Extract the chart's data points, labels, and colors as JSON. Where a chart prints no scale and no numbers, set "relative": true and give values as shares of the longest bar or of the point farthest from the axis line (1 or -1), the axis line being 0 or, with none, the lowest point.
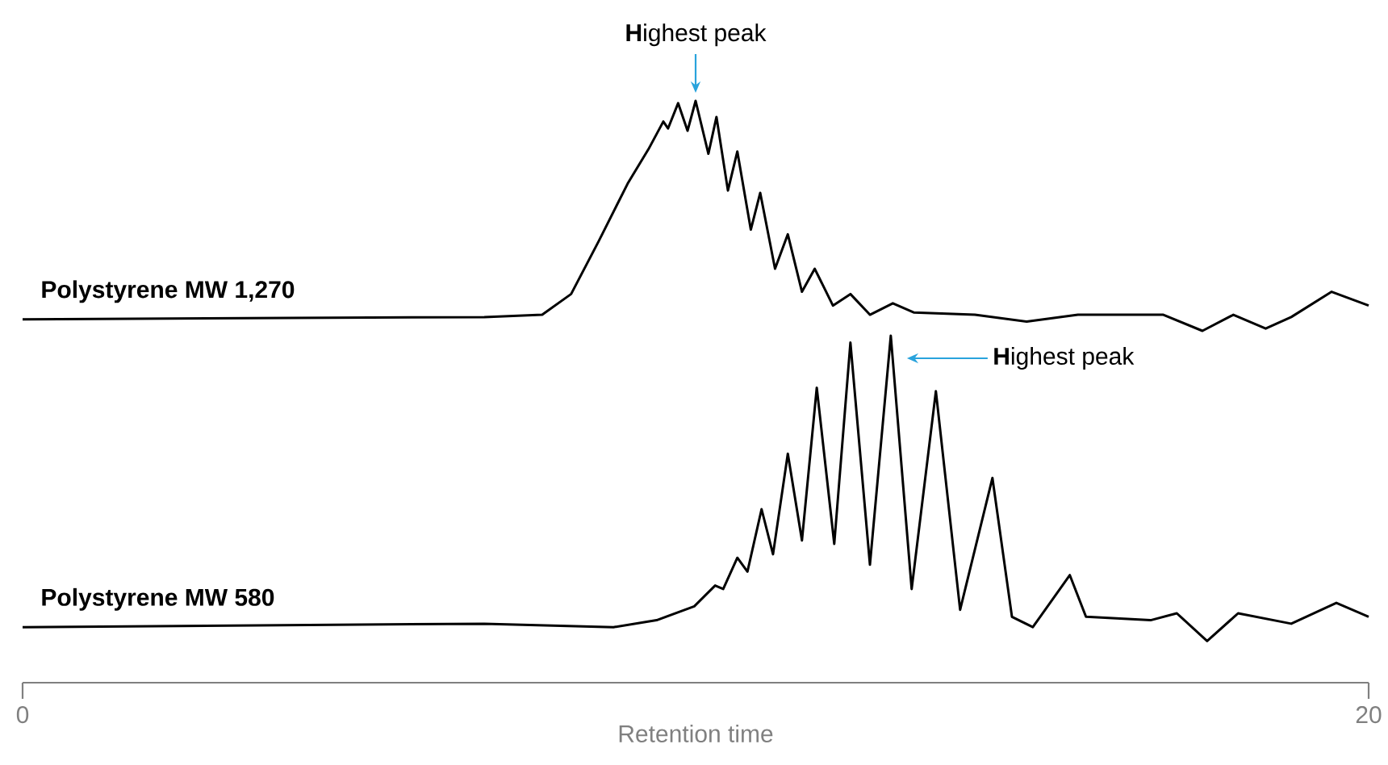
{
  "chart_data": [
    {
      "type": "line",
      "relative": true,
      "xlim": [
        0,
        20
      ],
      "tick_labels": false,
      "marker": "none",
      "annotations": [
        {
          "text": "**H**ighest peak",
          "x": 10.0,
          "y": 1.0
        }
      ],
      "series": [
        {
          "name": "Polystyrene MW 1,270",
          "color": "#000000",
          "x": [
            0,
            6.86,
            7.72,
            8.15,
            8.56,
            8.99,
            9.3,
            9.52,
            9.59,
            9.74,
            9.88,
            10.0,
            10.19,
            10.31,
            10.48,
            10.62,
            10.82,
            10.96,
            11.18,
            11.37,
            11.58,
            11.77,
            12.04,
            12.3,
            12.59,
            12.93,
            13.24,
            14.15,
            14.92,
            15.68,
            16.95,
            17.53,
            17.99,
            18.47,
            18.85,
            19.45,
            20
          ],
          "values": [
            0.05,
            0.06,
            0.07,
            0.16,
            0.39,
            0.64,
            0.79,
            0.91,
            0.88,
            0.99,
            0.87,
            1.0,
            0.77,
            0.93,
            0.61,
            0.78,
            0.44,
            0.6,
            0.27,
            0.42,
            0.17,
            0.27,
            0.11,
            0.16,
            0.07,
            0.12,
            0.08,
            0.07,
            0.04,
            0.07,
            0.07,
            0,
            0.07,
            0.01,
            0.06,
            0.17,
            0.11
          ]
        }
      ]
    },
    {
      "type": "line",
      "relative": true,
      "xlim": [
        0,
        20
      ],
      "xticks": [
        0,
        20
      ],
      "xlabel": "Retention time",
      "marker": "none",
      "annotations": [
        "**H**ighest peak"
      ],
      "series": [
        {
          "name": "Polystyrene MW 580",
          "color": "#000000",
          "x": [
            0,
            6.86,
            8.78,
            9.42,
            9.98,
            10.29,
            10.41,
            10.62,
            10.77,
            10.98,
            11.15,
            11.37,
            11.58,
            11.8,
            12.06,
            12.3,
            12.59,
            12.9,
            13.21,
            13.57,
            13.93,
            14.41,
            14.7,
            15.01,
            15.56,
            15.8,
            16.76,
            17.15,
            17.6,
            18.06,
            18.85,
            19.52,
            20
          ],
          "values": [
            0.16,
            0.17,
            0.16,
            0.18,
            0.22,
            0.28,
            0.27,
            0.36,
            0.32,
            0.5,
            0.37,
            0.66,
            0.41,
            0.85,
            0.4,
            0.98,
            0.34,
            1.0,
            0.27,
            0.84,
            0.21,
            0.59,
            0.19,
            0.16,
            0.31,
            0.19,
            0.18,
            0.2,
            0.12,
            0.2,
            0.17,
            0.23,
            0.19
          ]
        }
      ]
    }
  ]
}
